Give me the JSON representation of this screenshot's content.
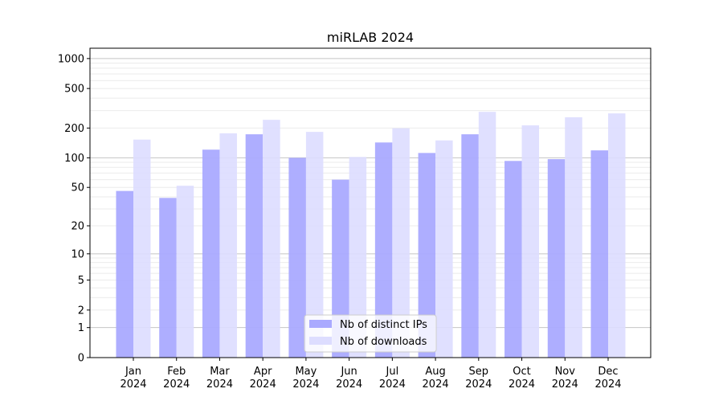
{
  "chart_data": {
    "type": "bar",
    "title": "miRLAB 2024",
    "xlabel": "",
    "ylabel": "",
    "yscale": "log(1+y)",
    "ylim": [
      0,
      1270
    ],
    "yticks": [
      0,
      1,
      2,
      5,
      10,
      20,
      50,
      100,
      200,
      500,
      1000
    ],
    "ytick_labels": [
      "0",
      "1",
      "2",
      "5",
      "10",
      "20",
      "50",
      "100",
      "200",
      "500",
      "1000"
    ],
    "categories": [
      "Jan\n2024",
      "Feb\n2024",
      "Mar\n2024",
      "Apr\n2024",
      "May\n2024",
      "Jun\n2024",
      "Jul\n2024",
      "Aug\n2024",
      "Sep\n2024",
      "Oct\n2024",
      "Nov\n2024",
      "Dec\n2024"
    ],
    "series": [
      {
        "name": "Nb of distinct IPs",
        "color": "#aaaaff",
        "values": [
          46,
          39,
          121,
          173,
          100,
          60,
          143,
          112,
          173,
          93,
          97,
          119
        ]
      },
      {
        "name": "Nb of downloads",
        "color": "#ddddff",
        "values": [
          153,
          52,
          177,
          242,
          183,
          102,
          199,
          150,
          291,
          213,
          257,
          281
        ]
      }
    ],
    "grid": true,
    "legend_position": "bottom-center"
  }
}
